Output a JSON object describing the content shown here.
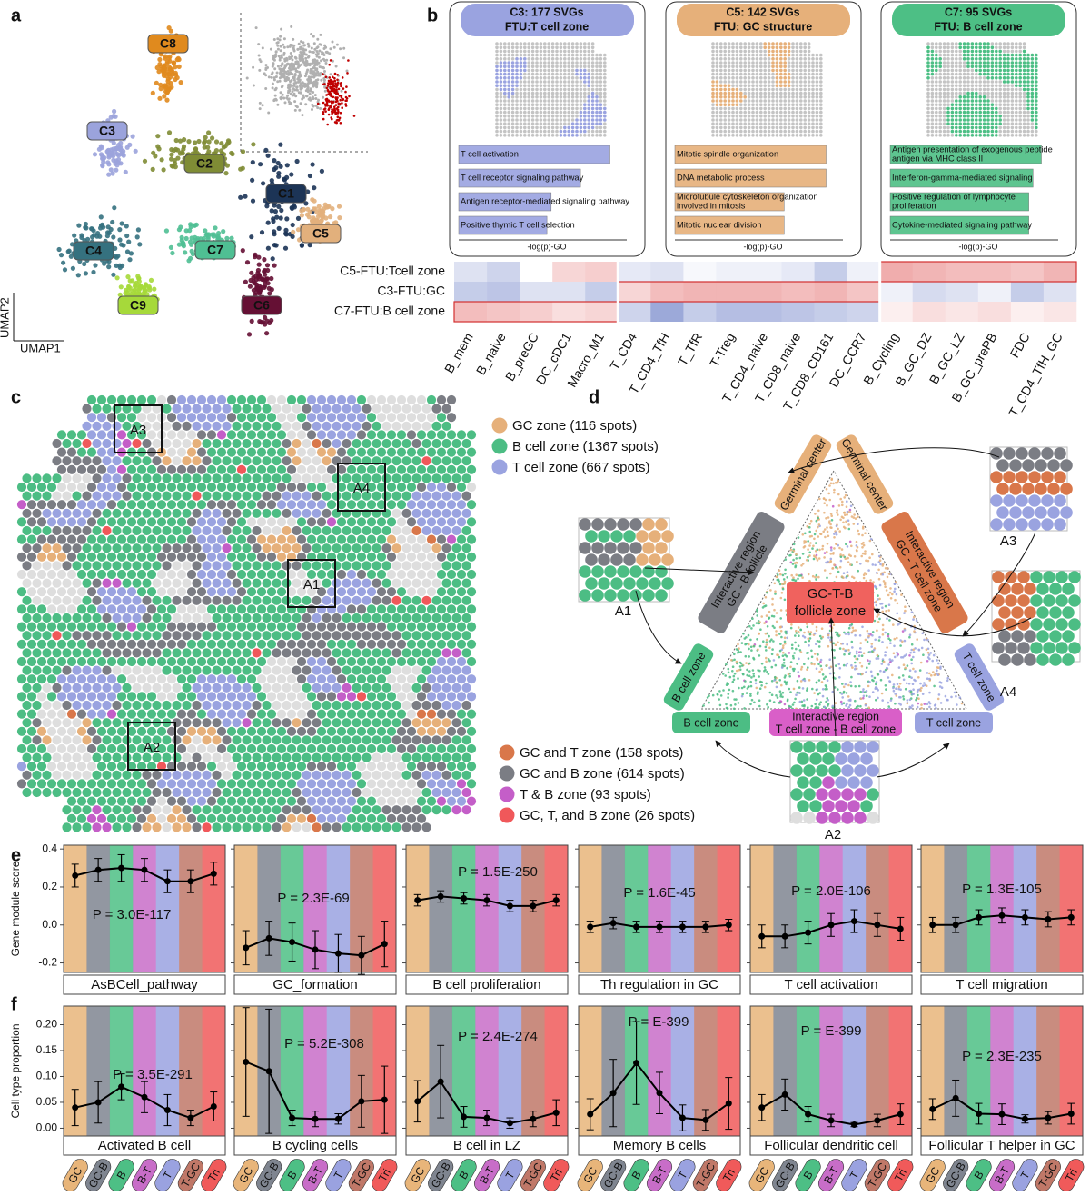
{
  "panel_labels": [
    "a",
    "b",
    "c",
    "d",
    "e",
    "f"
  ],
  "umap": {
    "xlabel": "UMAP1",
    "ylabel": "UMAP2",
    "highlight_color": "#c00000",
    "clusters": [
      {
        "name": "C8",
        "color": "#e08a1e"
      },
      {
        "name": "C3",
        "color": "#9ba3dc"
      },
      {
        "name": "C2",
        "color": "#7f8c35"
      },
      {
        "name": "C1",
        "color": "#1c3456"
      },
      {
        "name": "C5",
        "color": "#e2b07c"
      },
      {
        "name": "C4",
        "color": "#35717f"
      },
      {
        "name": "C7",
        "color": "#4fbf93"
      },
      {
        "name": "C9",
        "color": "#a6d93a"
      },
      {
        "name": "C6",
        "color": "#651034"
      }
    ]
  },
  "svg_panels": [
    {
      "title": [
        "C3: 177 SVGs",
        "FTU:T cell zone"
      ],
      "color": "#9aa3e0",
      "xlabel": "-log(p)-GO",
      "xlim": [
        0,
        20
      ],
      "terms": [
        {
          "label": [
            "T cell activation"
          ],
          "value": 18
        },
        {
          "label": [
            "T cell receptor signaling pathway"
          ],
          "value": 14.5
        },
        {
          "label": [
            "Antigen receptor-mediated signaling pathway"
          ],
          "value": 11
        },
        {
          "label": [
            "Positive thymic T cell selection"
          ],
          "value": 10.5
        }
      ]
    },
    {
      "title": [
        "C5: 142 SVGs",
        "FTU: GC structure"
      ],
      "color": "#e6b07a",
      "xlabel": "-log(p)-GO",
      "xlim": [
        0,
        20
      ],
      "terms": [
        {
          "label": [
            "Mitotic spindle organization"
          ],
          "value": 18
        },
        {
          "label": [
            "DNA metabolic process"
          ],
          "value": 18
        },
        {
          "label": [
            "Microtubule cytoskeleton organization",
            "involved in mitosis"
          ],
          "value": 13
        },
        {
          "label": [
            "Mitotic nuclear division"
          ],
          "value": 13
        }
      ]
    },
    {
      "title": [
        "C7: 95 SVGs",
        "FTU: B cell zone"
      ],
      "color": "#4dbf85",
      "xlabel": "-log(p)-GO",
      "xlim": [
        0,
        20
      ],
      "terms": [
        {
          "label": [
            "Antigen presentation of exogenous peptide",
            "antigen via MHC class II"
          ],
          "value": 18
        },
        {
          "label": [
            "Interferon-gamma-mediated signaling"
          ],
          "value": 17
        },
        {
          "label": [
            "Positive regulation of lymphocyte",
            "proliferation"
          ],
          "value": 16.5
        },
        {
          "label": [
            "Cytokine-mediated signaling pathway"
          ],
          "value": 16.5
        }
      ]
    }
  ],
  "heatmap": {
    "clim": [
      -1,
      1
    ],
    "low_color": "#5a6fc0",
    "high_color": "#e05a5a",
    "rows": [
      {
        "label": "C5-FTU:Tcell zone",
        "values": [
          -0.2,
          -0.3,
          0.0,
          0.25,
          0.3,
          -0.15,
          -0.2,
          -0.05,
          -0.1,
          -0.1,
          -0.15,
          -0.35,
          -0.1,
          0.5,
          0.45,
          0.4,
          0.4,
          0.35,
          0.45
        ]
      },
      {
        "label": "C3-FTU:GC",
        "values": [
          -0.35,
          -0.4,
          -0.2,
          -0.2,
          -0.35,
          0.25,
          0.4,
          0.45,
          0.45,
          0.45,
          0.4,
          0.45,
          0.35,
          -0.1,
          -0.25,
          -0.2,
          -0.1,
          -0.35,
          -0.2
        ]
      },
      {
        "label": "C7-FTU:B cell zone",
        "values": [
          0.4,
          0.35,
          0.3,
          0.2,
          0.25,
          -0.3,
          -0.6,
          -0.35,
          -0.45,
          -0.45,
          -0.4,
          -0.35,
          -0.3,
          0.1,
          0.2,
          0.15,
          0.2,
          0.1,
          0.15
        ]
      }
    ],
    "col_groups": [
      {
        "color": "#4dbf85",
        "labels": [
          "B_mem",
          "B_naive",
          "B_preGC",
          "DC_cDC1",
          "Macro_M1"
        ]
      },
      {
        "color": "#9aa3e0",
        "labels": [
          "T_CD4",
          "T_CD4_TfH",
          "T_TfR",
          "T-Treg",
          "T_CD4_naive",
          "T_CD8_naive",
          "T_CD8_CD161",
          "DC_CCR7"
        ]
      },
      {
        "color": "#e0a860",
        "labels": [
          "B_Cycling",
          "B_GC_DZ",
          "B_GC_LZ",
          "B_GC_prePB",
          "FDC",
          "T_CD4_TfH_GC"
        ]
      }
    ]
  },
  "spatial": {
    "background_color": "#dedede",
    "boxes": [
      "A3",
      "A4",
      "A1",
      "A2"
    ],
    "zones": [
      {
        "label": "GC zone (116 spots)",
        "color": "#e6b07a"
      },
      {
        "label": "B cell zone (1367 spots)",
        "color": "#4cbd84"
      },
      {
        "label": "T cell zone (667 spots)",
        "color": "#9aa3e0"
      },
      {
        "label": "GC and T zone (158 spots)",
        "color": "#d9774a"
      },
      {
        "label": "GC and B zone (614 spots)",
        "color": "#7b7d84"
      },
      {
        "label": "T & B zone (93 spots)",
        "color": "#c45ec8"
      },
      {
        "label": "GC, T, and B zone (26 spots)",
        "color": "#f0585a"
      }
    ]
  },
  "triangle": {
    "labels": [
      {
        "lines": [
          "Germinal center"
        ],
        "color": "#e6b07a"
      },
      {
        "lines": [
          "Germinal center"
        ],
        "color": "#e6b07a"
      },
      {
        "lines": [
          "Interactive region",
          "GC - B follicle"
        ],
        "color": "#7b7d84"
      },
      {
        "lines": [
          "Interactive region",
          "GC - T cell zone"
        ],
        "color": "#d9774a"
      },
      {
        "lines": [
          "B cell zone"
        ],
        "color": "#4cbd84"
      },
      {
        "lines": [
          "T cell zone"
        ],
        "color": "#9aa3e0"
      },
      {
        "lines": [
          "B cell zone"
        ],
        "color": "#4cbd84"
      },
      {
        "lines": [
          "Interactive region",
          "T cell zone - B cell zone"
        ],
        "color": "#d95fc8"
      },
      {
        "lines": [
          "T cell zone"
        ],
        "color": "#9aa3e0"
      }
    ],
    "center": {
      "lines": [
        "GC-T-B",
        "follicle zone"
      ],
      "color": "#f0625e"
    },
    "insets": [
      "A1",
      "A3",
      "A4",
      "A2"
    ]
  },
  "chart_data": [
    {
      "type": "line",
      "title": "AsBCell_pathway",
      "annotation": "P = 3.0E-117",
      "ylabel": "Gene module score",
      "ylim": [
        -0.25,
        0.42
      ],
      "yticks": [
        -0.2,
        {
          "value": 0,
          "label": "0.0"
        },
        0.2,
        0.4
      ],
      "band_colors": [
        "#e8b57a",
        "#7f8590",
        "#4dbf85",
        "#c86dc8",
        "#9aa2e0",
        "#c07868",
        "#f05a5a"
      ],
      "color": "#000000",
      "values": [
        0.26,
        0.29,
        0.3,
        0.29,
        0.23,
        0.23,
        0.27
      ],
      "errors": [
        0.06,
        0.06,
        0.07,
        0.06,
        0.06,
        0.06,
        0.06
      ]
    },
    {
      "type": "line",
      "title": "GC_formation",
      "annotation": "P = 2.3E-69",
      "ylim": [
        -0.25,
        0.42
      ],
      "band_colors": [
        "#e8b57a",
        "#7f8590",
        "#4dbf85",
        "#c86dc8",
        "#9aa2e0",
        "#c07868",
        "#f05a5a"
      ],
      "color": "#000000",
      "values": [
        -0.12,
        -0.07,
        -0.09,
        -0.13,
        -0.15,
        -0.16,
        -0.1
      ],
      "errors": [
        0.09,
        0.09,
        0.1,
        0.1,
        0.1,
        0.1,
        0.12
      ]
    },
    {
      "type": "line",
      "title": "B cell proliferation",
      "annotation": "P = 1.5E-250",
      "ylim": [
        -0.25,
        0.42
      ],
      "band_colors": [
        "#e8b57a",
        "#7f8590",
        "#4dbf85",
        "#c86dc8",
        "#9aa2e0",
        "#c07868",
        "#f05a5a"
      ],
      "color": "#000000",
      "values": [
        0.13,
        0.15,
        0.14,
        0.13,
        0.1,
        0.1,
        0.13
      ],
      "errors": [
        0.03,
        0.03,
        0.03,
        0.03,
        0.03,
        0.03,
        0.03
      ]
    },
    {
      "type": "line",
      "title": "Th regulation in GC",
      "annotation": "P = 1.6E-45",
      "ylim": [
        -0.25,
        0.42
      ],
      "band_colors": [
        "#e8b57a",
        "#7f8590",
        "#4dbf85",
        "#c86dc8",
        "#9aa2e0",
        "#c07868",
        "#f05a5a"
      ],
      "color": "#000000",
      "values": [
        -0.01,
        0.01,
        -0.01,
        -0.01,
        -0.01,
        -0.01,
        0.0
      ],
      "errors": [
        0.03,
        0.03,
        0.03,
        0.03,
        0.03,
        0.03,
        0.03
      ]
    },
    {
      "type": "line",
      "title": "T cell activation",
      "annotation": "P = 2.0E-106",
      "ylim": [
        -0.25,
        0.42
      ],
      "band_colors": [
        "#e8b57a",
        "#7f8590",
        "#4dbf85",
        "#c86dc8",
        "#9aa2e0",
        "#c07868",
        "#f05a5a"
      ],
      "color": "#000000",
      "values": [
        -0.06,
        -0.06,
        -0.04,
        0.0,
        0.02,
        0.0,
        -0.02
      ],
      "errors": [
        0.06,
        0.06,
        0.06,
        0.06,
        0.06,
        0.06,
        0.06
      ]
    },
    {
      "type": "line",
      "title": "T cell migration",
      "annotation": "P = 1.3E-105",
      "ylim": [
        -0.25,
        0.42
      ],
      "band_colors": [
        "#e8b57a",
        "#7f8590",
        "#4dbf85",
        "#c86dc8",
        "#9aa2e0",
        "#c07868",
        "#f05a5a"
      ],
      "color": "#000000",
      "values": [
        0.0,
        0.0,
        0.04,
        0.05,
        0.04,
        0.03,
        0.04
      ],
      "errors": [
        0.04,
        0.04,
        0.04,
        0.04,
        0.04,
        0.04,
        0.04
      ]
    },
    {
      "type": "line",
      "title": "Activated B cell",
      "annotation": "P = 3.5E-291",
      "ylabel": "Cell type proportion",
      "ylim": [
        -0.015,
        0.236
      ],
      "yticks": [
        {
          "value": 0,
          "label": "0.00"
        },
        {
          "value": 0.05,
          "label": "0.05"
        },
        {
          "value": 0.1,
          "label": "0.10"
        },
        {
          "value": 0.15,
          "label": "0.15"
        },
        {
          "value": 0.2,
          "label": "0.20"
        }
      ],
      "categories": [
        "GC",
        "GC-B",
        "B",
        "B-T",
        "T",
        "T-GC",
        "Tri"
      ],
      "band_colors": [
        "#e8b57a",
        "#7f8590",
        "#4dbf85",
        "#c86dc8",
        "#9aa2e0",
        "#c07868",
        "#f05a5a"
      ],
      "color": "#000000",
      "values": [
        0.04,
        0.05,
        0.08,
        0.06,
        0.035,
        0.02,
        0.042
      ],
      "errors": [
        0.035,
        0.04,
        0.025,
        0.03,
        0.03,
        0.015,
        0.028
      ]
    },
    {
      "type": "line",
      "title": "B cycling cells",
      "annotation": "P = 5.2E-308",
      "ylim": [
        -0.015,
        0.236
      ],
      "categories": [
        "GC",
        "GC-B",
        "B",
        "B-T",
        "T",
        "T-GC",
        "Tri"
      ],
      "band_colors": [
        "#e8b57a",
        "#7f8590",
        "#4dbf85",
        "#c86dc8",
        "#9aa2e0",
        "#c07868",
        "#f05a5a"
      ],
      "color": "#000000",
      "values": [
        0.128,
        0.11,
        0.02,
        0.018,
        0.018,
        0.052,
        0.055
      ],
      "errors": [
        0.105,
        0.12,
        0.015,
        0.015,
        0.01,
        0.05,
        0.065
      ]
    },
    {
      "type": "line",
      "title": "B cell in LZ",
      "annotation": "P = 2.4E-274",
      "ylim": [
        -0.015,
        0.236
      ],
      "categories": [
        "GC",
        "GC-B",
        "B",
        "B-T",
        "T",
        "T-GC",
        "Tri"
      ],
      "band_colors": [
        "#e8b57a",
        "#7f8590",
        "#4dbf85",
        "#c86dc8",
        "#9aa2e0",
        "#c07868",
        "#f05a5a"
      ],
      "color": "#000000",
      "values": [
        0.052,
        0.09,
        0.022,
        0.02,
        0.01,
        0.018,
        0.03
      ],
      "errors": [
        0.04,
        0.07,
        0.02,
        0.015,
        0.01,
        0.015,
        0.025
      ]
    },
    {
      "type": "line",
      "title": "Memory B cells",
      "annotation": "P = E-399",
      "ylim": [
        -0.015,
        0.236
      ],
      "categories": [
        "GC",
        "GC-B",
        "B",
        "B-T",
        "T",
        "T-GC",
        "Tri"
      ],
      "band_colors": [
        "#e8b57a",
        "#7f8590",
        "#4dbf85",
        "#c86dc8",
        "#9aa2e0",
        "#c07868",
        "#f05a5a"
      ],
      "color": "#000000",
      "values": [
        0.027,
        0.068,
        0.126,
        0.068,
        0.02,
        0.016,
        0.048
      ],
      "errors": [
        0.03,
        0.065,
        0.08,
        0.04,
        0.025,
        0.02,
        0.05
      ]
    },
    {
      "type": "line",
      "title": "Follicular dendritic cell",
      "annotation": "P = E-399",
      "ylim": [
        -0.015,
        0.236
      ],
      "categories": [
        "GC",
        "GC-B",
        "B",
        "B-T",
        "T",
        "T-GC",
        "Tri"
      ],
      "band_colors": [
        "#e8b57a",
        "#7f8590",
        "#4dbf85",
        "#c86dc8",
        "#9aa2e0",
        "#c07868",
        "#f05a5a"
      ],
      "color": "#000000",
      "values": [
        0.04,
        0.065,
        0.027,
        0.015,
        0.007,
        0.015,
        0.027
      ],
      "errors": [
        0.025,
        0.03,
        0.015,
        0.012,
        0.004,
        0.012,
        0.02
      ]
    },
    {
      "type": "line",
      "title": "Follicular T helper in GC",
      "annotation": "P = 2.3E-235",
      "ylim": [
        -0.015,
        0.236
      ],
      "categories": [
        "GC",
        "GC-B",
        "B",
        "B-T",
        "T",
        "T-GC",
        "Tri"
      ],
      "band_colors": [
        "#e8b57a",
        "#7f8590",
        "#4dbf85",
        "#c86dc8",
        "#9aa2e0",
        "#c07868",
        "#f05a5a"
      ],
      "color": "#000000",
      "values": [
        0.037,
        0.058,
        0.028,
        0.027,
        0.018,
        0.02,
        0.028
      ],
      "errors": [
        0.02,
        0.035,
        0.02,
        0.02,
        0.008,
        0.012,
        0.02
      ]
    }
  ]
}
